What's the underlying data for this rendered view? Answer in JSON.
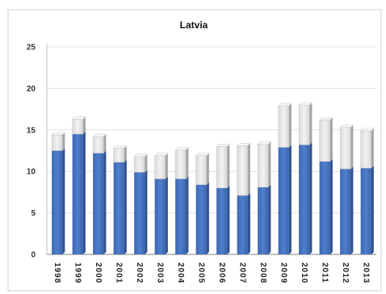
{
  "chart_data": {
    "type": "bar",
    "title": "Latvia",
    "stacked": true,
    "categories": [
      "1998",
      "1999",
      "2000",
      "2001",
      "2002",
      "2003",
      "2004",
      "2005",
      "2006",
      "2007",
      "2008",
      "2009",
      "2010",
      "2011",
      "2012",
      "2013"
    ],
    "series": [
      {
        "values": [
          12.5,
          14.5,
          12.2,
          11.1,
          9.9,
          9.1,
          9.1,
          8.4,
          8.0,
          7.1,
          8.1,
          12.9,
          13.2,
          11.2,
          10.3,
          10.4
        ],
        "color": "#4472c4"
      },
      {
        "values": [
          1.9,
          1.8,
          2.0,
          1.7,
          1.9,
          2.8,
          3.5,
          3.5,
          5.0,
          6.0,
          5.2,
          5.0,
          4.8,
          5.0,
          5.0,
          4.5
        ],
        "color": "#e6e6e6"
      }
    ],
    "yticks": [
      "0",
      "5",
      "10",
      "15",
      "20",
      "25"
    ],
    "ylim": [
      0,
      25
    ],
    "grid": true
  }
}
